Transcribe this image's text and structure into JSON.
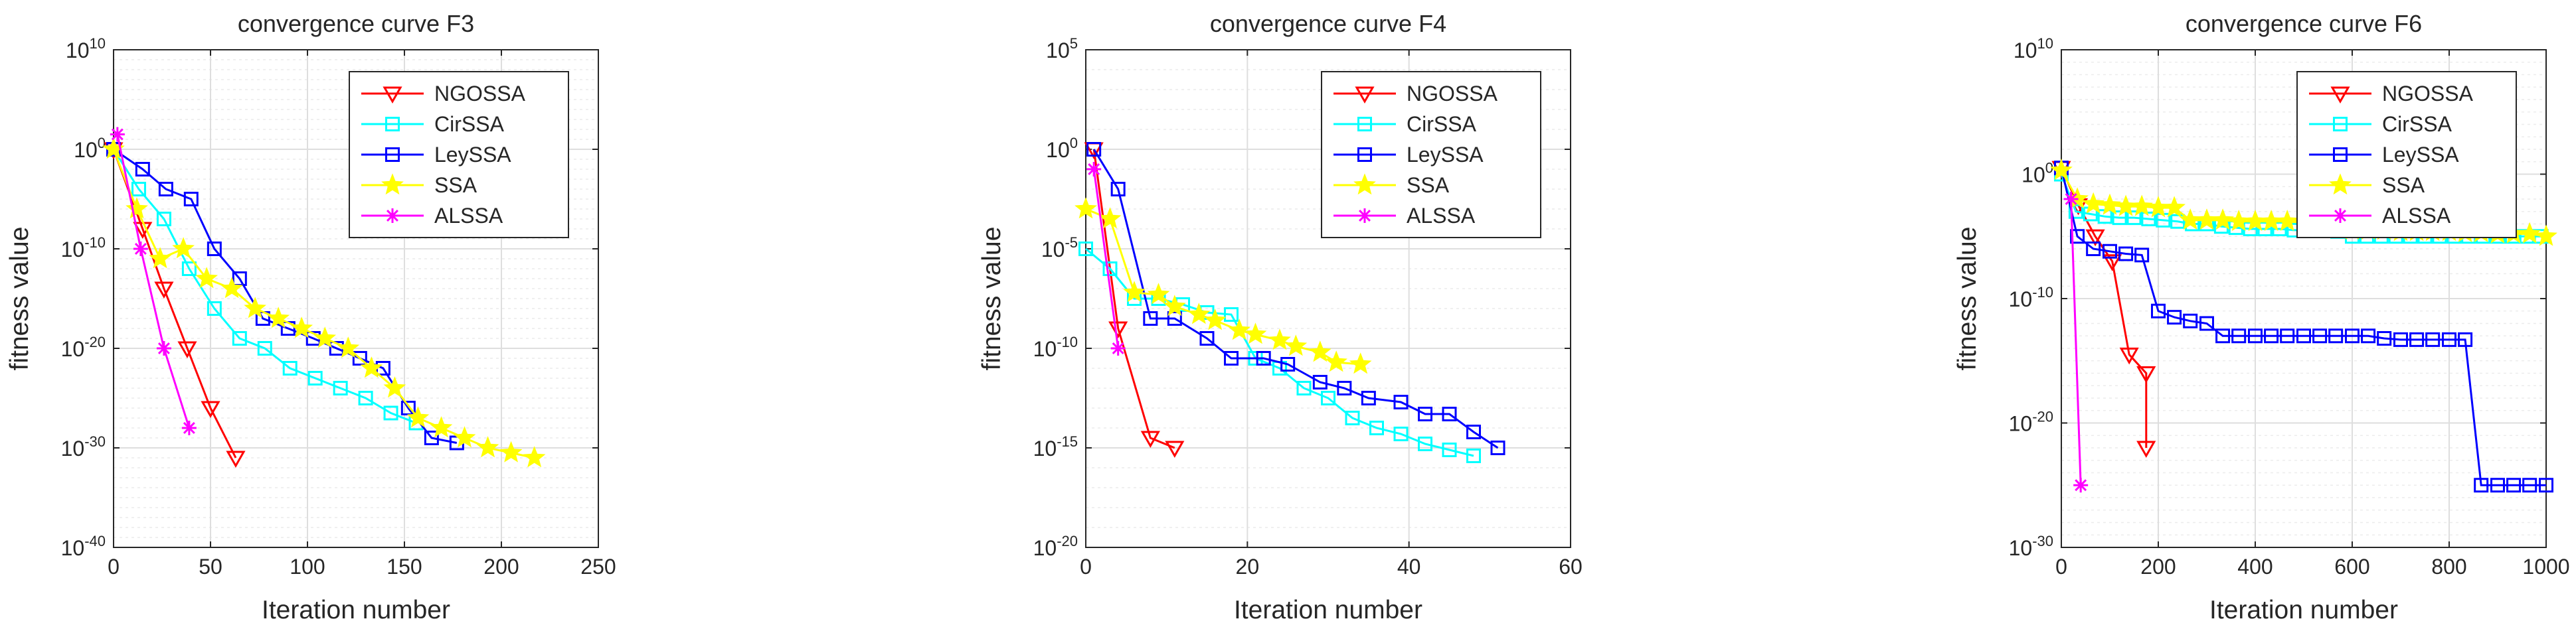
{
  "colors": {
    "NGOSSA": "#ff0000",
    "CirSSA": "#00ffff",
    "LeySSA": "#0000ff",
    "SSA": "#ffff00",
    "ALSSA": "#ff00ff",
    "axis": "#262626",
    "grid": "#dedede",
    "background": "#ffffff"
  },
  "chart_data": [
    {
      "type": "line",
      "title": "convergence curve F3",
      "xlabel": "Iteration number",
      "ylabel": "fitness value",
      "xscale": "linear",
      "yscale": "log",
      "xlim": [
        0,
        250
      ],
      "xticks": [
        0,
        50,
        100,
        150,
        200,
        250
      ],
      "ylim_exp": [
        -40,
        10
      ],
      "ytick_exps": [
        -40,
        -30,
        -20,
        -10,
        0,
        10
      ],
      "grid": true,
      "legend_position": "top-right",
      "series": [
        {
          "name": "NGOSSA",
          "marker": "triangle-down",
          "points": [
            [
              0,
              0
            ],
            [
              15,
              -8
            ],
            [
              26,
              -14
            ],
            [
              38,
              -20
            ],
            [
              50,
              -26
            ],
            [
              63,
              -31
            ]
          ]
        },
        {
          "name": "CirSSA",
          "marker": "square",
          "points": [
            [
              0,
              0
            ],
            [
              13,
              -4
            ],
            [
              26,
              -7
            ],
            [
              39,
              -12
            ],
            [
              52,
              -16
            ],
            [
              65,
              -19
            ],
            [
              78,
              -20
            ],
            [
              91,
              -22
            ],
            [
              104,
              -23
            ],
            [
              117,
              -24
            ],
            [
              130,
              -25
            ],
            [
              143,
              -26.5
            ],
            [
              156,
              -27.5
            ]
          ]
        },
        {
          "name": "LeySSA",
          "marker": "square",
          "points": [
            [
              0,
              0
            ],
            [
              15,
              -2
            ],
            [
              27,
              -4
            ],
            [
              40,
              -5
            ],
            [
              52,
              -10
            ],
            [
              65,
              -13
            ],
            [
              77,
              -17
            ],
            [
              90,
              -18
            ],
            [
              103,
              -19
            ],
            [
              115,
              -20
            ],
            [
              127,
              -21
            ],
            [
              139,
              -22
            ],
            [
              152,
              -26
            ],
            [
              164,
              -29
            ],
            [
              177,
              -29.5
            ]
          ]
        },
        {
          "name": "SSA",
          "marker": "star5",
          "points": [
            [
              0,
              0
            ],
            [
              12,
              -6
            ],
            [
              24,
              -11
            ],
            [
              36,
              -10
            ],
            [
              48,
              -13
            ],
            [
              61,
              -14
            ],
            [
              73,
              -16
            ],
            [
              85,
              -17
            ],
            [
              97,
              -18
            ],
            [
              109,
              -19
            ],
            [
              121,
              -20
            ],
            [
              133,
              -22
            ],
            [
              145,
              -24
            ],
            [
              157,
              -27
            ],
            [
              169,
              -28
            ],
            [
              181,
              -29
            ],
            [
              193,
              -30
            ],
            [
              205,
              -30.5
            ],
            [
              217,
              -31
            ]
          ]
        },
        {
          "name": "ALSSA",
          "marker": "asterisk",
          "points": [
            [
              2,
              1.5
            ],
            [
              14,
              -10
            ],
            [
              26,
              -20
            ],
            [
              39,
              -28
            ]
          ]
        }
      ]
    },
    {
      "type": "line",
      "title": "convergence curve F4",
      "xlabel": "Iteration number",
      "ylabel": "fitness value",
      "xscale": "linear",
      "yscale": "log",
      "xlim": [
        0,
        60
      ],
      "xticks": [
        0,
        20,
        40,
        60
      ],
      "ylim_exp": [
        -20,
        5
      ],
      "ytick_exps": [
        -20,
        -15,
        -10,
        -5,
        0,
        5
      ],
      "grid": true,
      "legend_position": "top-right",
      "series": [
        {
          "name": "NGOSSA",
          "marker": "triangle-down",
          "points": [
            [
              1,
              0
            ],
            [
              4,
              -9
            ],
            [
              8,
              -14.5
            ],
            [
              11,
              -15
            ]
          ]
        },
        {
          "name": "CirSSA",
          "marker": "square",
          "points": [
            [
              0,
              -5
            ],
            [
              3,
              -6
            ],
            [
              6,
              -7.5
            ],
            [
              9,
              -7.5
            ],
            [
              12,
              -7.8
            ],
            [
              15,
              -8.2
            ],
            [
              18,
              -8.3
            ],
            [
              21,
              -10.5
            ],
            [
              24,
              -11
            ],
            [
              27,
              -12
            ],
            [
              30,
              -12.5
            ],
            [
              33,
              -13.5
            ],
            [
              36,
              -14
            ],
            [
              39,
              -14.3
            ],
            [
              42,
              -14.8
            ],
            [
              45,
              -15.1
            ],
            [
              48,
              -15.4
            ]
          ]
        },
        {
          "name": "LeySSA",
          "marker": "square",
          "points": [
            [
              1,
              0
            ],
            [
              4,
              -2
            ],
            [
              8,
              -8.5
            ],
            [
              11,
              -8.5
            ],
            [
              15,
              -9.5
            ],
            [
              18,
              -10.5
            ],
            [
              22,
              -10.5
            ],
            [
              25,
              -10.8
            ],
            [
              29,
              -11.7
            ],
            [
              32,
              -12
            ],
            [
              35,
              -12.5
            ],
            [
              39,
              -12.7
            ],
            [
              42,
              -13.3
            ],
            [
              45,
              -13.3
            ],
            [
              48,
              -14.2
            ],
            [
              51,
              -15
            ]
          ]
        },
        {
          "name": "SSA",
          "marker": "star5",
          "points": [
            [
              0,
              -3
            ],
            [
              3,
              -3.5
            ],
            [
              6,
              -7.2
            ],
            [
              9,
              -7.3
            ],
            [
              11,
              -7.9
            ],
            [
              14,
              -8.3
            ],
            [
              16,
              -8.6
            ],
            [
              19,
              -9.1
            ],
            [
              21,
              -9.3
            ],
            [
              24,
              -9.6
            ],
            [
              26,
              -9.9
            ],
            [
              29,
              -10.2
            ],
            [
              31,
              -10.7
            ],
            [
              34,
              -10.8
            ]
          ]
        },
        {
          "name": "ALSSA",
          "marker": "asterisk",
          "points": [
            [
              1,
              -1
            ],
            [
              4,
              -10
            ]
          ]
        }
      ]
    },
    {
      "type": "line",
      "title": "convergence curve F6",
      "xlabel": "Iteration number",
      "ylabel": "fitness value",
      "xscale": "linear",
      "yscale": "log",
      "xlim": [
        0,
        1000
      ],
      "xticks": [
        0,
        200,
        400,
        600,
        800,
        1000
      ],
      "ylim_exp": [
        -30,
        10
      ],
      "ytick_exps": [
        -30,
        -20,
        -10,
        0,
        10
      ],
      "grid": true,
      "legend_position": "top-right",
      "series": [
        {
          "name": "NGOSSA",
          "marker": "triangle-down",
          "points": [
            [
              0,
              0.5
            ],
            [
              35,
              -2.5
            ],
            [
              70,
              -5
            ],
            [
              105,
              -7
            ],
            [
              140,
              -14.5
            ],
            [
              175,
              -16
            ],
            [
              175,
              -22
            ]
          ]
        },
        {
          "name": "CirSSA",
          "marker": "square",
          "points": [
            [
              0,
              0
            ],
            [
              30,
              -3
            ],
            [
              60,
              -3.2
            ],
            [
              90,
              -3.4
            ],
            [
              120,
              -3.5
            ],
            [
              150,
              -3.5
            ],
            [
              180,
              -3.6
            ],
            [
              210,
              -3.7
            ],
            [
              240,
              -3.8
            ],
            [
              270,
              -4
            ],
            [
              300,
              -4
            ],
            [
              330,
              -4.2
            ],
            [
              360,
              -4.3
            ],
            [
              390,
              -4.4
            ],
            [
              420,
              -4.4
            ],
            [
              450,
              -4.4
            ],
            [
              480,
              -4.5
            ],
            [
              510,
              -4.5
            ],
            [
              540,
              -4.5
            ],
            [
              570,
              -4.6
            ],
            [
              600,
              -5
            ],
            [
              630,
              -5
            ],
            [
              660,
              -5
            ],
            [
              690,
              -5
            ],
            [
              720,
              -5
            ],
            [
              750,
              -5
            ],
            [
              780,
              -5
            ],
            [
              810,
              -5
            ],
            [
              840,
              -5
            ],
            [
              870,
              -5
            ],
            [
              900,
              -5
            ],
            [
              930,
              -5
            ],
            [
              960,
              -5
            ],
            [
              990,
              -5
            ]
          ]
        },
        {
          "name": "LeySSA",
          "marker": "square",
          "points": [
            [
              0,
              0.5
            ],
            [
              33,
              -5
            ],
            [
              66,
              -6
            ],
            [
              100,
              -6.2
            ],
            [
              133,
              -6.4
            ],
            [
              166,
              -6.5
            ],
            [
              200,
              -11
            ],
            [
              233,
              -11.5
            ],
            [
              266,
              -11.8
            ],
            [
              300,
              -12
            ],
            [
              333,
              -13
            ],
            [
              366,
              -13
            ],
            [
              400,
              -13
            ],
            [
              433,
              -13
            ],
            [
              466,
              -13
            ],
            [
              500,
              -13
            ],
            [
              533,
              -13
            ],
            [
              566,
              -13
            ],
            [
              600,
              -13
            ],
            [
              633,
              -13
            ],
            [
              666,
              -13.2
            ],
            [
              700,
              -13.3
            ],
            [
              733,
              -13.3
            ],
            [
              766,
              -13.3
            ],
            [
              800,
              -13.3
            ],
            [
              833,
              -13.3
            ],
            [
              866,
              -25
            ],
            [
              900,
              -25
            ],
            [
              933,
              -25
            ],
            [
              966,
              -25
            ],
            [
              1000,
              -25
            ]
          ]
        },
        {
          "name": "SSA",
          "marker": "star5",
          "points": [
            [
              0,
              0.3
            ],
            [
              33,
              -2
            ],
            [
              66,
              -2.4
            ],
            [
              100,
              -2.5
            ],
            [
              133,
              -2.6
            ],
            [
              166,
              -2.6
            ],
            [
              200,
              -2.7
            ],
            [
              233,
              -2.7
            ],
            [
              266,
              -3.7
            ],
            [
              300,
              -3.7
            ],
            [
              333,
              -3.7
            ],
            [
              366,
              -3.8
            ],
            [
              400,
              -3.8
            ],
            [
              433,
              -3.8
            ],
            [
              466,
              -3.8
            ],
            [
              500,
              -3.9
            ],
            [
              533,
              -3.9
            ],
            [
              566,
              -4
            ],
            [
              600,
              -4.5
            ],
            [
              633,
              -4.5
            ],
            [
              666,
              -4.5
            ],
            [
              700,
              -4.6
            ],
            [
              733,
              -4.6
            ],
            [
              766,
              -4.6
            ],
            [
              800,
              -4.6
            ],
            [
              833,
              -4.7
            ],
            [
              866,
              -4.7
            ],
            [
              900,
              -4.8
            ],
            [
              933,
              -4.8
            ],
            [
              966,
              -4.8
            ],
            [
              1000,
              -5
            ]
          ]
        },
        {
          "name": "ALSSA",
          "marker": "asterisk",
          "points": [
            [
              20,
              -2
            ],
            [
              40,
              -25
            ]
          ]
        }
      ]
    }
  ]
}
